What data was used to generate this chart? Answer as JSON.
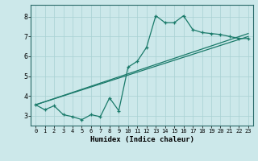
{
  "xlabel": "Humidex (Indice chaleur)",
  "bg_color": "#cce8ea",
  "grid_color": "#a8d0d2",
  "line_color": "#1a7a6a",
  "x_ticks": [
    0,
    1,
    2,
    3,
    4,
    5,
    6,
    7,
    8,
    9,
    10,
    11,
    12,
    13,
    14,
    15,
    16,
    17,
    18,
    19,
    20,
    21,
    22,
    23
  ],
  "y_ticks": [
    3,
    4,
    5,
    6,
    7,
    8
  ],
  "ylim": [
    2.5,
    8.6
  ],
  "xlim": [
    -0.5,
    23.5
  ],
  "curve1_x": [
    0,
    1,
    2,
    3,
    4,
    5,
    6,
    7,
    8,
    9,
    10,
    11,
    12,
    13,
    14,
    15,
    16,
    17,
    18,
    19,
    20,
    21,
    22,
    23
  ],
  "curve1_y": [
    3.55,
    3.3,
    3.5,
    3.05,
    2.95,
    2.8,
    3.05,
    2.95,
    3.9,
    3.25,
    5.45,
    5.75,
    6.45,
    8.05,
    7.7,
    7.7,
    8.05,
    7.35,
    7.2,
    7.15,
    7.1,
    7.0,
    6.9,
    6.9
  ],
  "line2_x": [
    0,
    23
  ],
  "line2_y": [
    3.55,
    7.0
  ],
  "line3_x": [
    0,
    23
  ],
  "line3_y": [
    3.55,
    7.15
  ]
}
